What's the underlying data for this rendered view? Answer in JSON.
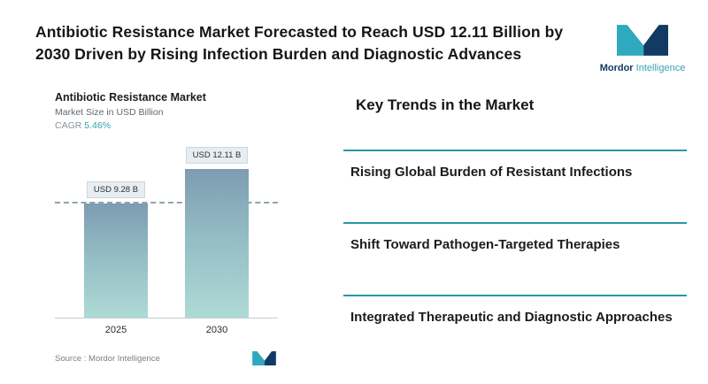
{
  "header": {
    "title": "Antibiotic Resistance Market Forecasted to Reach USD 12.11 Billion by 2030 Driven by Rising Infection Burden and Diagnostic Advances",
    "logo": {
      "brand_bold": "Mordor",
      "brand_light": "Intelligence",
      "icon": "mordor-logo-icon"
    }
  },
  "chart": {
    "title": "Antibiotic Resistance Market",
    "subtitle": "Market Size in USD Billion",
    "cagr_label": "CAGR",
    "cagr_value": "5.46%",
    "source_label": "Source :",
    "source_value": "Mordor Intelligence",
    "bars": [
      {
        "year": "2025",
        "label": "USD 9.28 B",
        "value": 9.28
      },
      {
        "year": "2030",
        "label": "USD 12.11 B",
        "value": 12.11
      }
    ]
  },
  "chart_data": {
    "type": "bar",
    "title": "Antibiotic Resistance Market",
    "subtitle": "Market Size in USD Billion",
    "cagr": "5.46%",
    "unit": "USD Billion",
    "categories": [
      "2025",
      "2030"
    ],
    "values": [
      9.28,
      12.11
    ],
    "data_labels": [
      "USD 9.28 B",
      "USD 12.11 B"
    ],
    "reference_line": 9.28,
    "ylim": [
      0,
      12.11
    ],
    "grid": false,
    "legend": false,
    "source": "Mordor Intelligence"
  },
  "trends": {
    "heading": "Key Trends in the Market",
    "items": [
      "Rising Global Burden of Resistant Infections",
      "Shift Toward Pathogen-Targeted Therapies",
      "Integrated Therapeutic and Diagnostic Approaches"
    ]
  },
  "colors": {
    "accent_teal": "#2b96a5",
    "brand_navy": "#123a63",
    "brand_teal": "#2ea9bd",
    "bar_gradient_top": "#7d9cb2",
    "bar_gradient_bottom": "#aedad6",
    "value_box_bg": "#e7edf0"
  }
}
